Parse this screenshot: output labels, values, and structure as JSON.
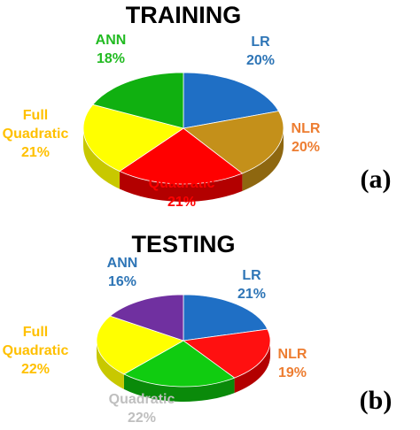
{
  "chart_data": [
    {
      "type": "pie",
      "title": "TRAINING",
      "panel_label": "(a)",
      "slices": [
        {
          "name": "LR",
          "display_name": [
            "LR"
          ],
          "value": 20,
          "value_label": "20%",
          "color": "#1f6fc5",
          "side_color": "#15518f",
          "label_color": "#2e75b6"
        },
        {
          "name": "NLR",
          "display_name": [
            "NLR"
          ],
          "value": 20,
          "value_label": "20%",
          "color": "#c4901a",
          "side_color": "#8e6710",
          "label_color": "#ed7d31"
        },
        {
          "name": "Quadratic",
          "display_name": [
            "Quadratic"
          ],
          "value": 21,
          "value_label": "21%",
          "color": "#ff0000",
          "side_color": "#b30000",
          "label_color": "#ff0000"
        },
        {
          "name": "Full Quadratic",
          "display_name": [
            "Full",
            "Quadratic"
          ],
          "value": 21,
          "value_label": "21%",
          "color": "#ffff00",
          "side_color": "#c8c800",
          "label_color": "#ffc000"
        },
        {
          "name": "ANN",
          "display_name": [
            "ANN"
          ],
          "value": 18,
          "value_label": "18%",
          "color": "#10b010",
          "side_color": "#0a7a0a",
          "label_color": "#22bb22"
        }
      ]
    },
    {
      "type": "pie",
      "title": "TESTING",
      "panel_label": "(b)",
      "slices": [
        {
          "name": "LR",
          "display_name": [
            "LR"
          ],
          "value": 21,
          "value_label": "21%",
          "color": "#1f6fc5",
          "side_color": "#15518f",
          "label_color": "#2e75b6"
        },
        {
          "name": "NLR",
          "display_name": [
            "NLR"
          ],
          "value": 19,
          "value_label": "19%",
          "color": "#ff1010",
          "side_color": "#b30000",
          "label_color": "#ed7d31"
        },
        {
          "name": "Quadratic",
          "display_name": [
            "Quadratic"
          ],
          "value": 22,
          "value_label": "22%",
          "color": "#10cc10",
          "side_color": "#0a8a0a",
          "label_color": "#bfbfbf"
        },
        {
          "name": "Full Quadratic",
          "display_name": [
            "Full",
            "Quadratic"
          ],
          "value": 22,
          "value_label": "22%",
          "color": "#ffff00",
          "side_color": "#c8c800",
          "label_color": "#ffc000"
        },
        {
          "name": "ANN",
          "display_name": [
            "ANN"
          ],
          "value": 16,
          "value_label": "16%",
          "color": "#7030a0",
          "side_color": "#4e2070",
          "label_color": "#2e75b6"
        }
      ]
    }
  ]
}
